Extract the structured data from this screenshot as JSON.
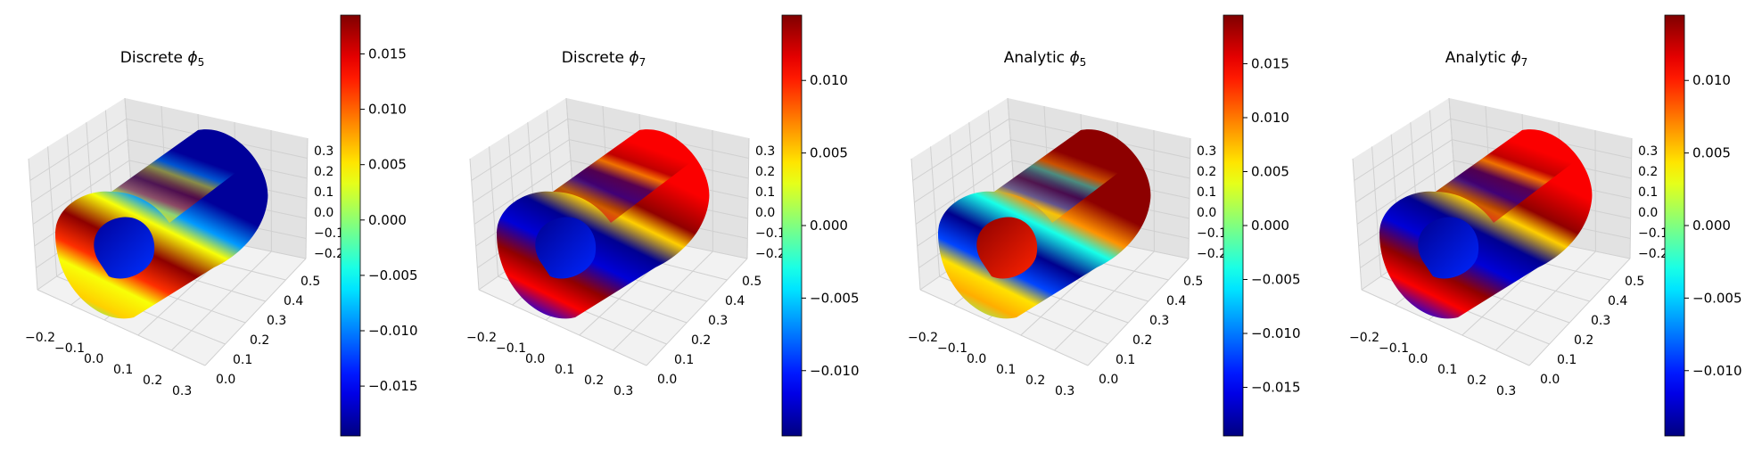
{
  "figure": {
    "panels": [
      {
        "title": {
          "prefix": "Discrete ",
          "symbol": "ϕ",
          "sub": "5"
        }
      },
      {
        "title": {
          "prefix": "Discrete ",
          "symbol": "ϕ",
          "sub": "7"
        }
      },
      {
        "title": {
          "prefix": "Analytic ",
          "symbol": "ϕ",
          "sub": "5"
        }
      },
      {
        "title": {
          "prefix": "Analytic ",
          "symbol": "ϕ",
          "sub": "7"
        }
      }
    ]
  },
  "chart_data": [
    {
      "type": "surface3d",
      "title": "Discrete ϕ5",
      "x_ticks": [
        "−0.2",
        "−0.1",
        "0.0",
        "0.1",
        "0.2",
        "0.3"
      ],
      "y_ticks": [
        "0.0",
        "0.1",
        "0.2",
        "0.3",
        "0.4",
        "0.5"
      ],
      "z_ticks": [
        "0.3",
        "0.2",
        "0.1",
        "0.0",
        "−0.1",
        "−0.2"
      ],
      "colorbar": {
        "colormap": "jet",
        "range": [
          -0.0195,
          0.0185
        ],
        "ticks": [
          0.015,
          0.01,
          0.005,
          0.0,
          -0.005,
          -0.01,
          -0.015
        ],
        "tick_labels": [
          "0.015",
          "0.010",
          "0.005",
          "0.000",
          "−0.005",
          "−0.010",
          "−0.015"
        ]
      },
      "bands": [
        {
          "start": 0.0,
          "value": 0.0
        },
        {
          "start": 0.05,
          "value": -0.003
        },
        {
          "start": 0.14,
          "value": 0.006
        },
        {
          "start": 0.25,
          "value": 0.004
        },
        {
          "start": 0.33,
          "value": 0.012
        },
        {
          "start": 0.45,
          "value": 0.018
        },
        {
          "start": 0.58,
          "value": 0.004
        },
        {
          "start": 0.66,
          "value": -0.009
        },
        {
          "start": 0.78,
          "value": -0.0185
        },
        {
          "start": 1.0,
          "value": -0.0185
        }
      ],
      "inner": {
        "start": 0.2,
        "value": -0.0185
      }
    },
    {
      "type": "surface3d",
      "title": "Discrete ϕ7",
      "x_ticks": [
        "−0.2",
        "−0.1",
        "0.0",
        "0.1",
        "0.2",
        "0.3"
      ],
      "y_ticks": [
        "0.0",
        "0.1",
        "0.2",
        "0.3",
        "0.4",
        "0.5"
      ],
      "z_ticks": [
        "0.3",
        "0.2",
        "0.1",
        "0.0",
        "−0.1",
        "−0.2"
      ],
      "colorbar": {
        "colormap": "jet",
        "range": [
          -0.0145,
          0.0145
        ],
        "ticks": [
          0.01,
          0.005,
          0.0,
          -0.005,
          -0.01
        ],
        "tick_labels": [
          "0.010",
          "0.005",
          "0.000",
          "−0.005",
          "−0.010"
        ]
      },
      "bands": [
        {
          "start": 0.0,
          "value": -0.003
        },
        {
          "start": 0.08,
          "value": -0.011
        },
        {
          "start": 0.2,
          "value": 0.011
        },
        {
          "start": 0.3,
          "value": 0.014
        },
        {
          "start": 0.42,
          "value": -0.012
        },
        {
          "start": 0.55,
          "value": -0.014
        },
        {
          "start": 0.66,
          "value": 0.005
        },
        {
          "start": 0.74,
          "value": 0.014
        },
        {
          "start": 0.9,
          "value": 0.011
        },
        {
          "start": 1.0,
          "value": 0.011
        }
      ],
      "inner": {
        "start": 0.5,
        "value": -0.014
      }
    },
    {
      "type": "surface3d",
      "title": "Analytic ϕ5",
      "x_ticks": [
        "−0.2",
        "−0.1",
        "0.0",
        "0.1",
        "0.2",
        "0.3"
      ],
      "y_ticks": [
        "0.0",
        "0.1",
        "0.2",
        "0.3",
        "0.4",
        "0.5"
      ],
      "z_ticks": [
        "0.3",
        "0.2",
        "0.1",
        "0.0",
        "−0.1",
        "−0.2"
      ],
      "colorbar": {
        "colormap": "jet",
        "range": [
          -0.0195,
          0.0195
        ],
        "ticks": [
          0.015,
          0.01,
          0.005,
          0.0,
          -0.005,
          -0.01,
          -0.015
        ],
        "tick_labels": [
          "0.015",
          "0.010",
          "0.005",
          "0.000",
          "−0.005",
          "−0.010",
          "−0.015"
        ]
      },
      "bands": [
        {
          "start": 0.0,
          "value": 0.006
        },
        {
          "start": 0.06,
          "value": 0.0
        },
        {
          "start": 0.16,
          "value": 0.008
        },
        {
          "start": 0.25,
          "value": 0.006
        },
        {
          "start": 0.33,
          "value": -0.012
        },
        {
          "start": 0.45,
          "value": -0.019
        },
        {
          "start": 0.58,
          "value": -0.004
        },
        {
          "start": 0.66,
          "value": 0.009
        },
        {
          "start": 0.78,
          "value": 0.019
        },
        {
          "start": 1.0,
          "value": 0.019
        }
      ],
      "inner": {
        "start": 0.2,
        "value": 0.019
      }
    },
    {
      "type": "surface3d",
      "title": "Analytic ϕ7",
      "x_ticks": [
        "−0.2",
        "−0.1",
        "0.0",
        "0.1",
        "0.2",
        "0.3"
      ],
      "y_ticks": [
        "0.0",
        "0.1",
        "0.2",
        "0.3",
        "0.4",
        "0.5"
      ],
      "z_ticks": [
        "0.3",
        "0.2",
        "0.1",
        "0.0",
        "−0.1",
        "−0.2"
      ],
      "colorbar": {
        "colormap": "jet",
        "range": [
          -0.0145,
          0.0145
        ],
        "ticks": [
          0.01,
          0.005,
          0.0,
          -0.005,
          -0.01
        ],
        "tick_labels": [
          "0.010",
          "0.005",
          "0.000",
          "−0.005",
          "−0.010"
        ]
      },
      "bands": [
        {
          "start": 0.0,
          "value": -0.003
        },
        {
          "start": 0.08,
          "value": -0.011
        },
        {
          "start": 0.2,
          "value": 0.011
        },
        {
          "start": 0.3,
          "value": 0.014
        },
        {
          "start": 0.42,
          "value": -0.012
        },
        {
          "start": 0.55,
          "value": -0.014
        },
        {
          "start": 0.66,
          "value": 0.005
        },
        {
          "start": 0.74,
          "value": 0.014
        },
        {
          "start": 0.9,
          "value": 0.011
        },
        {
          "start": 1.0,
          "value": 0.011
        }
      ],
      "inner": {
        "start": 0.5,
        "value": -0.014
      }
    }
  ]
}
